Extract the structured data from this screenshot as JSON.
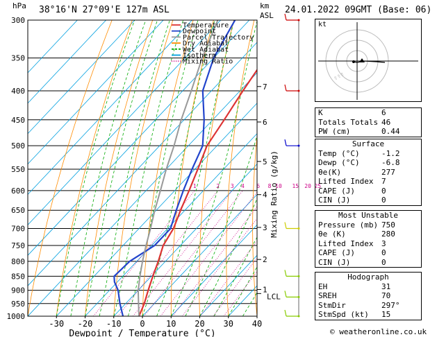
{
  "header": {
    "hpa_label": "hPa",
    "location": "38°16'N 27°09'E 127m ASL",
    "km_label": "km",
    "asl_label": "ASL",
    "datetime": "24.01.2022 09GMT (Base: 06)"
  },
  "chart_data": {
    "type": "skew-t log-p",
    "xlabel": "Dewpoint / Temperature (°C)",
    "ylabel": "hPa",
    "right_axis_label": "Mixing Ratio (g/kg)",
    "x_ticks": [
      -30,
      -20,
      -10,
      0,
      10,
      20,
      30,
      40
    ],
    "xlim": [
      -40,
      40
    ],
    "pressure_levels": [
      300,
      350,
      400,
      450,
      500,
      550,
      600,
      650,
      700,
      750,
      800,
      850,
      900,
      950,
      1000
    ],
    "km_ticks": [
      {
        "km": "7",
        "p": 393
      },
      {
        "km": "6",
        "p": 454
      },
      {
        "km": "5",
        "p": 533
      },
      {
        "km": "4",
        "p": 610
      },
      {
        "km": "3",
        "p": 697
      },
      {
        "km": "2",
        "p": 794
      },
      {
        "km": "1",
        "p": 897
      }
    ],
    "lcl": {
      "label": "LCL",
      "p": 912
    },
    "mixing_ratio_labels": [
      "1",
      "2",
      "3",
      "4",
      "6",
      "8",
      "10",
      "15",
      "20",
      "25"
    ],
    "mixing_ratio_values": [
      1,
      2,
      3,
      4,
      6,
      8,
      10,
      15,
      20,
      25
    ],
    "legend": [
      {
        "name": "Temperature",
        "color": "#dd3333"
      },
      {
        "name": "Dewpoint",
        "color": "#2244cc"
      },
      {
        "name": "Parcel Trajectory",
        "color": "#999999"
      },
      {
        "name": "Dry Adiabat",
        "color": "#ff8c00"
      },
      {
        "name": "Wet Adiabat",
        "color": "#00aa00"
      },
      {
        "name": "Isotherm",
        "color": "#00a0e0"
      },
      {
        "name": "Mixing Ratio",
        "color": "#cc0088"
      }
    ],
    "series": [
      {
        "name": "Temperature",
        "points": [
          [
            1000,
            -1.2
          ],
          [
            950,
            -3.5
          ],
          [
            900,
            -6.5
          ],
          [
            850,
            -9.5
          ],
          [
            800,
            -12.5
          ],
          [
            750,
            -16
          ],
          [
            700,
            -18
          ],
          [
            650,
            -21.5
          ],
          [
            600,
            -25
          ],
          [
            550,
            -29
          ],
          [
            500,
            -33.5
          ],
          [
            450,
            -36
          ],
          [
            400,
            -39
          ],
          [
            350,
            -42
          ],
          [
            300,
            -45
          ]
        ]
      },
      {
        "name": "Dewpoint",
        "points": [
          [
            1000,
            -6.8
          ],
          [
            950,
            -12
          ],
          [
            900,
            -17
          ],
          [
            870,
            -21
          ],
          [
            850,
            -23
          ],
          [
            800,
            -22.5
          ],
          [
            750,
            -19
          ],
          [
            700,
            -19
          ],
          [
            650,
            -23
          ],
          [
            600,
            -27
          ],
          [
            550,
            -31
          ],
          [
            500,
            -35
          ],
          [
            450,
            -43
          ],
          [
            400,
            -53
          ],
          [
            350,
            -60
          ],
          [
            300,
            -65
          ]
        ]
      },
      {
        "name": "Parcel Trajectory",
        "points": [
          [
            1000,
            -1.2
          ],
          [
            950,
            -5.5
          ],
          [
            900,
            -10
          ],
          [
            850,
            -14
          ],
          [
            800,
            -18
          ],
          [
            750,
            -22
          ],
          [
            700,
            -26
          ],
          [
            650,
            -30.5
          ],
          [
            600,
            -35
          ],
          [
            550,
            -40
          ],
          [
            500,
            -45
          ],
          [
            450,
            -51
          ],
          [
            400,
            -57
          ],
          [
            350,
            -64
          ],
          [
            300,
            -71
          ]
        ]
      }
    ]
  },
  "hodograph": {
    "label": "kt"
  },
  "indices": {
    "rows": [
      {
        "label": "K",
        "value": "6"
      },
      {
        "label": "Totals Totals",
        "value": "46"
      },
      {
        "label": "PW (cm)",
        "value": "0.44"
      }
    ],
    "surface": {
      "title": "Surface",
      "rows": [
        {
          "label": "Temp (°C)",
          "value": "-1.2"
        },
        {
          "label": "Dewp (°C)",
          "value": "-6.8"
        },
        {
          "label": "θe(K)",
          "value": "277"
        },
        {
          "label": "Lifted Index",
          "value": "7"
        },
        {
          "label": "CAPE (J)",
          "value": "0"
        },
        {
          "label": "CIN (J)",
          "value": "0"
        }
      ]
    },
    "most_unstable": {
      "title": "Most Unstable",
      "rows": [
        {
          "label": "Pressure (mb)",
          "value": "750"
        },
        {
          "label": "θe (K)",
          "value": "280"
        },
        {
          "label": "Lifted Index",
          "value": "3"
        },
        {
          "label": "CAPE (J)",
          "value": "0"
        },
        {
          "label": "CIN (J)",
          "value": "0"
        }
      ]
    },
    "hodograph": {
      "title": "Hodograph",
      "rows": [
        {
          "label": "EH",
          "value": "31"
        },
        {
          "label": "SREH",
          "value": "70"
        },
        {
          "label": "StmDir",
          "value": "297°"
        },
        {
          "label": "StmSpd (kt)",
          "value": "15"
        }
      ]
    }
  },
  "footer": {
    "credit": "© weatheronline.co.uk"
  }
}
